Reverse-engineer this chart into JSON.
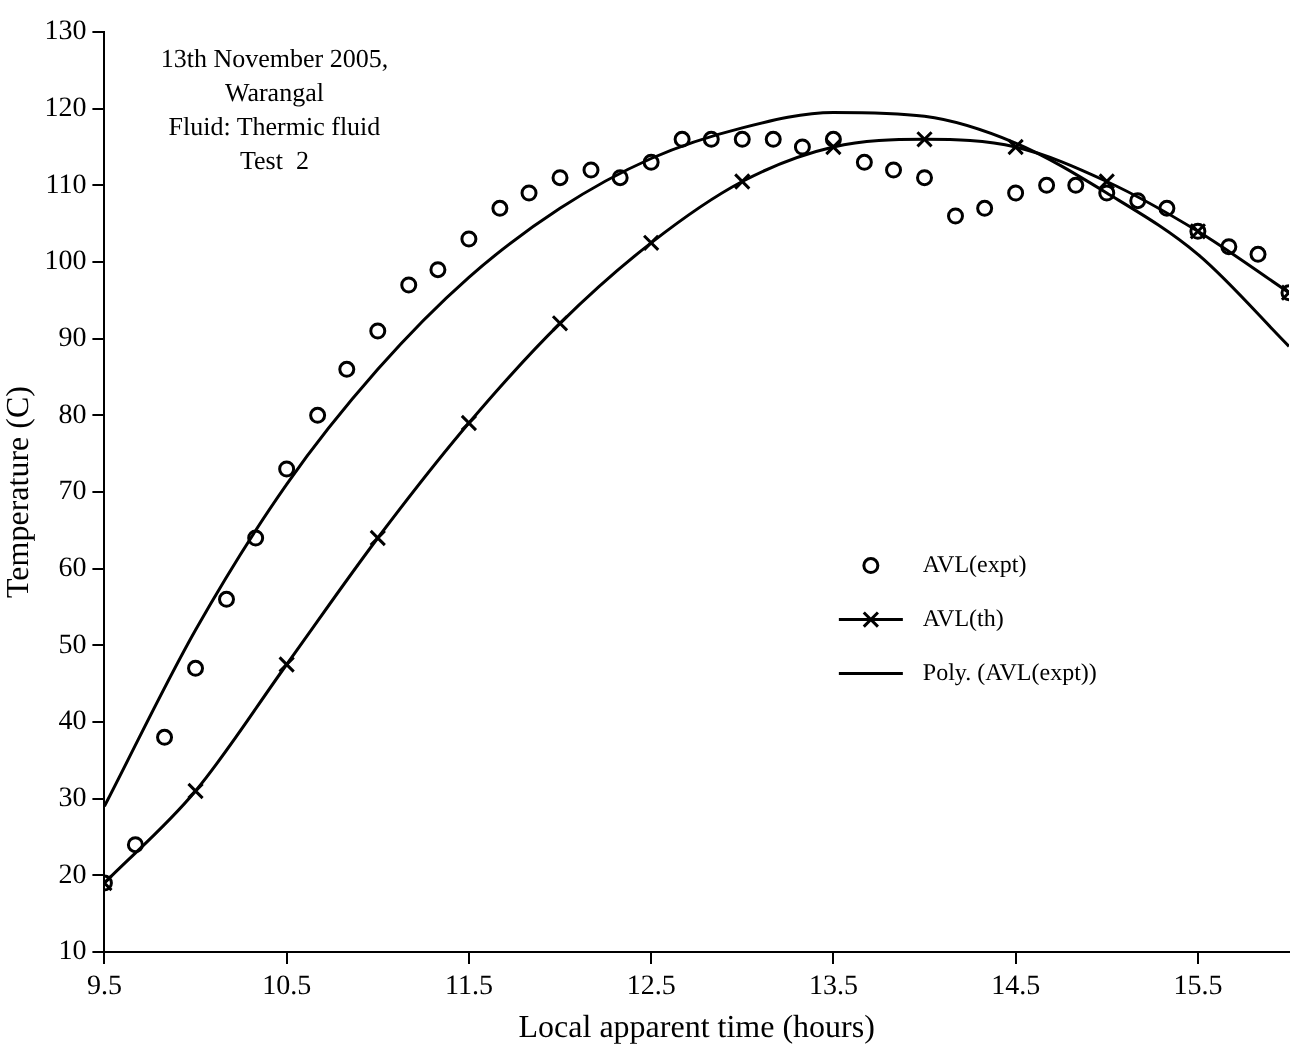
{
  "chart_data": {
    "type": "scatter",
    "xlabel": "Local apparent time (hours)",
    "ylabel": "Temperature (C)",
    "annotations": [
      "13th November 2005,",
      "Warangal",
      "Fluid: Thermic fluid",
      "Test  2"
    ],
    "xlim": [
      9.5,
      16
    ],
    "xticks": [
      9.5,
      10.5,
      11.5,
      12.5,
      13.5,
      14.5,
      15.5
    ],
    "ylim": [
      10,
      130
    ],
    "yticks": [
      10,
      20,
      30,
      40,
      50,
      60,
      70,
      80,
      90,
      100,
      110,
      120,
      130
    ],
    "grid": false,
    "legend": "right",
    "series": [
      {
        "name": "AVL(expt)",
        "marker": "circle",
        "color": "#000000",
        "x": [
          9.5,
          9.67,
          9.83,
          10,
          10.17,
          10.33,
          10.5,
          10.67,
          10.83,
          11,
          11.17,
          11.33,
          11.5,
          11.67,
          11.83,
          12,
          12.17,
          12.33,
          12.5,
          12.67,
          12.83,
          13,
          13.17,
          13.33,
          13.5,
          13.67,
          13.83,
          14,
          14.17,
          14.33,
          14.5,
          14.67,
          14.83,
          15,
          15.17,
          15.33,
          15.5,
          15.67,
          15.83,
          16
        ],
        "values": [
          19,
          24,
          38,
          47,
          56,
          64,
          73,
          80,
          86,
          91,
          97,
          99,
          103,
          107,
          109,
          111,
          112,
          111,
          113,
          116,
          116,
          116,
          116,
          115,
          116,
          113,
          112,
          111,
          106,
          107,
          109,
          110,
          110,
          109,
          108,
          107,
          104,
          102,
          101,
          96
        ]
      },
      {
        "name": "AVL(th)",
        "type": "line",
        "marker": "cross",
        "color": "#000000",
        "x": [
          9.5,
          10,
          10.5,
          11,
          11.5,
          12,
          12.5,
          13,
          13.5,
          14,
          14.5,
          15,
          15.5,
          16
        ],
        "values": [
          19,
          31,
          47.5,
          64,
          79,
          92,
          102.5,
          110.5,
          115,
          116,
          115,
          110.5,
          104,
          96
        ]
      },
      {
        "name": "Poly. (AVL(expt))",
        "type": "line",
        "marker": "none",
        "color": "#000000",
        "x": [
          9.5,
          10,
          10.5,
          11,
          11.5,
          12,
          12.5,
          13,
          13.5,
          14,
          14.5,
          15,
          15.5,
          16
        ],
        "values": [
          29,
          52,
          71,
          86,
          98,
          107,
          113.5,
          117.5,
          119.5,
          119,
          115.5,
          109,
          101,
          89
        ]
      }
    ]
  }
}
